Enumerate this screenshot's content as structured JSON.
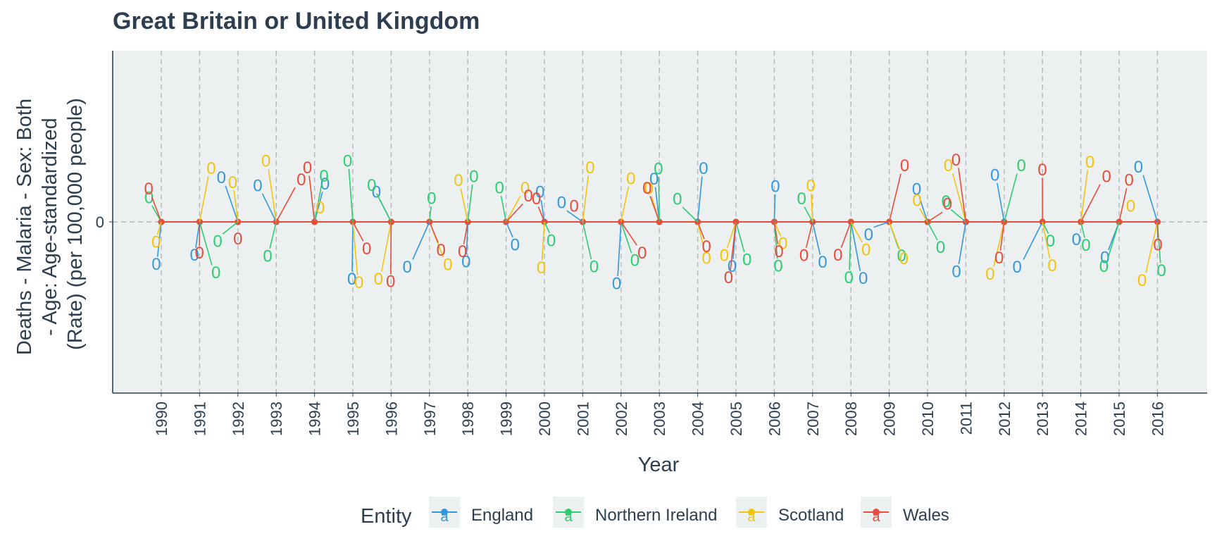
{
  "chart_data": {
    "type": "line",
    "title": "Great Britain or United Kingdom",
    "xlabel": "Year",
    "ylabel_lines": [
      "Deaths - Malaria - Sex: Both",
      "- Age: Age-standardized",
      "(Rate) (per 100,000 people)"
    ],
    "x": [
      1990,
      1991,
      1992,
      1993,
      1994,
      1995,
      1996,
      1997,
      1998,
      1999,
      2000,
      2001,
      2002,
      2003,
      2004,
      2005,
      2006,
      2007,
      2008,
      2009,
      2010,
      2011,
      2012,
      2013,
      2014,
      2015,
      2016
    ],
    "x_tick_labels": [
      "1990",
      "1991",
      "1992",
      "1993",
      "1994",
      "1995",
      "1996",
      "1997",
      "1998",
      "1999",
      "2000",
      "2001",
      "2002",
      "2003",
      "2004",
      "2005",
      "2006",
      "2007",
      "2008",
      "2009",
      "2010",
      "2011",
      "2012",
      "2013",
      "2014",
      "2015",
      "2016"
    ],
    "y_tick_labels": [
      "0"
    ],
    "ylim": [
      -1,
      1
    ],
    "grid": true,
    "legend_title": "Entity",
    "legend_position": "bottom",
    "point_label": "0",
    "series": [
      {
        "name": "England",
        "color": "#3498db",
        "values": [
          0,
          0,
          0,
          0,
          0,
          0,
          0,
          0,
          0,
          0,
          0,
          0,
          0,
          0,
          0,
          0,
          0,
          0,
          0,
          0,
          0,
          0,
          0,
          0,
          0,
          0,
          0
        ]
      },
      {
        "name": "Northern Ireland",
        "color": "#2ecc71",
        "values": [
          0,
          0,
          0,
          0,
          0,
          0,
          0,
          0,
          0,
          0,
          0,
          0,
          0,
          0,
          0,
          0,
          0,
          0,
          0,
          0,
          0,
          0,
          0,
          0,
          0,
          0,
          0
        ]
      },
      {
        "name": "Scotland",
        "color": "#f1c40f",
        "values": [
          0,
          0,
          0,
          0,
          0,
          0,
          0,
          0,
          0,
          0,
          0,
          0,
          0,
          0,
          0,
          0,
          0,
          0,
          0,
          0,
          0,
          0,
          0,
          0,
          0,
          0,
          0
        ]
      },
      {
        "name": "Wales",
        "color": "#e74c3c",
        "values": [
          0,
          0,
          0,
          0,
          0,
          0,
          0,
          0,
          0,
          0,
          0,
          0,
          0,
          0,
          0,
          0,
          0,
          0,
          0,
          0,
          0,
          0,
          0,
          0,
          0,
          0,
          0
        ]
      }
    ]
  }
}
